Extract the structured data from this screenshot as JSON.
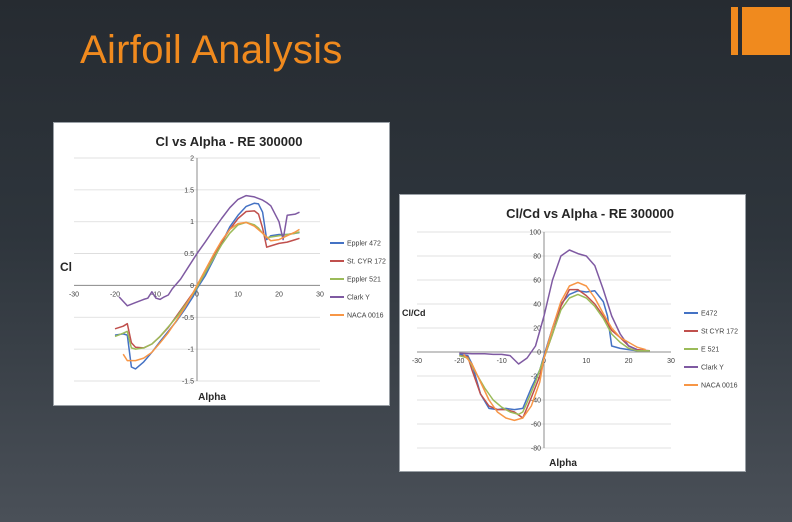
{
  "slide": {
    "title": "Airfoil Analysis",
    "accent_color": "#f08a1e",
    "background_color": "#2b3137"
  },
  "chart_data": [
    {
      "type": "line",
      "title": "Cl vs Alpha - RE 300000",
      "xlabel": "Alpha",
      "ylabel": "Cl",
      "xlim": [
        -30,
        30
      ],
      "ylim": [
        -1.5,
        2
      ],
      "xticks": [
        -30,
        -20,
        -10,
        0,
        10,
        20,
        30
      ],
      "yticks": [
        -1.5,
        -1,
        -0.5,
        0,
        0.5,
        1,
        1.5,
        2
      ],
      "xtick_labels": [
        "-30",
        "-20",
        "-10",
        "0",
        "10",
        "20",
        "30"
      ],
      "ytick_labels": [
        "-1.5",
        "-1",
        "-0.5",
        "0",
        "0.5",
        "1",
        "1.5",
        "2"
      ],
      "grid": true,
      "legend": "right",
      "series": [
        {
          "name": "Eppler 472",
          "color": "#4472c4",
          "x": [
            -20,
            -18,
            -17,
            -16,
            -15,
            -13,
            -11,
            -9,
            -7,
            -5,
            -3,
            -1,
            0,
            2,
            4,
            6,
            8,
            10,
            12,
            14,
            15,
            16,
            17,
            18,
            20,
            22,
            24,
            25
          ],
          "y": [
            -0.78,
            -0.76,
            -0.78,
            -1.28,
            -1.31,
            -1.2,
            -1.05,
            -0.88,
            -0.72,
            -0.56,
            -0.38,
            -0.18,
            -0.05,
            0.15,
            0.4,
            0.66,
            0.92,
            1.1,
            1.24,
            1.29,
            1.28,
            1.15,
            0.72,
            0.78,
            0.8,
            0.8,
            0.82,
            0.83
          ]
        },
        {
          "name": "St. CYR 172",
          "color": "#c0504d",
          "x": [
            -20,
            -18,
            -17,
            -16,
            -15,
            -13,
            -11,
            -9,
            -7,
            -5,
            -3,
            -1,
            0,
            2,
            4,
            6,
            8,
            10,
            12,
            14,
            15,
            16,
            17,
            18,
            20,
            22,
            24,
            25
          ],
          "y": [
            -0.68,
            -0.64,
            -0.6,
            -0.9,
            -0.97,
            -0.98,
            -0.92,
            -0.8,
            -0.66,
            -0.48,
            -0.3,
            -0.12,
            -0.02,
            0.2,
            0.44,
            0.68,
            0.88,
            1.05,
            1.16,
            1.17,
            1.12,
            0.9,
            0.6,
            0.62,
            0.66,
            0.68,
            0.72,
            0.74
          ]
        },
        {
          "name": "Eppler 521",
          "color": "#9bbb59",
          "x": [
            -20,
            -18,
            -17,
            -16,
            -15,
            -13,
            -11,
            -9,
            -7,
            -5,
            -3,
            -1,
            0,
            2,
            4,
            6,
            8,
            10,
            12,
            14,
            15,
            16,
            17,
            18,
            20,
            22,
            24,
            25
          ],
          "y": [
            -0.8,
            -0.75,
            -0.72,
            -0.98,
            -1.0,
            -0.98,
            -0.92,
            -0.8,
            -0.65,
            -0.5,
            -0.32,
            -0.14,
            -0.03,
            0.2,
            0.42,
            0.64,
            0.82,
            0.95,
            0.99,
            0.95,
            0.9,
            0.82,
            0.75,
            0.76,
            0.78,
            0.8,
            0.82,
            0.84
          ]
        },
        {
          "name": "Clark Y",
          "color": "#7f5aa2",
          "x": [
            -19,
            -17,
            -15,
            -13,
            -12,
            -11,
            -10,
            -9,
            -8,
            -7,
            -6,
            -4,
            -2,
            0,
            2,
            4,
            6,
            8,
            10,
            12,
            14,
            16,
            17,
            18,
            20,
            21,
            22,
            24,
            25
          ],
          "y": [
            -0.18,
            -0.32,
            -0.27,
            -0.22,
            -0.2,
            -0.1,
            -0.2,
            -0.22,
            -0.18,
            -0.15,
            -0.05,
            0.1,
            0.3,
            0.5,
            0.68,
            0.87,
            1.05,
            1.22,
            1.35,
            1.41,
            1.39,
            1.34,
            1.3,
            1.25,
            1.0,
            0.72,
            1.1,
            1.12,
            1.15
          ]
        },
        {
          "name": "NACA 0016",
          "color": "#f79646",
          "x": [
            -18,
            -17,
            -15,
            -13,
            -11,
            -9,
            -7,
            -5,
            -3,
            -1,
            0,
            2,
            4,
            6,
            8,
            10,
            12,
            14,
            16,
            18,
            20,
            22,
            24,
            25
          ],
          "y": [
            -1.08,
            -1.18,
            -1.18,
            -1.14,
            -1.05,
            -0.9,
            -0.74,
            -0.55,
            -0.35,
            -0.12,
            0.0,
            0.24,
            0.48,
            0.7,
            0.88,
            0.97,
            0.99,
            0.93,
            0.82,
            0.7,
            0.72,
            0.78,
            0.84,
            0.88
          ]
        }
      ]
    },
    {
      "type": "line",
      "title": "Cl/Cd vs Alpha - RE 300000",
      "xlabel": "Alpha",
      "ylabel": "Cl/Cd",
      "xlim": [
        -30,
        30
      ],
      "ylim": [
        -80,
        100
      ],
      "xticks": [
        -30,
        -20,
        -10,
        0,
        10,
        20,
        30
      ],
      "yticks": [
        -80,
        -60,
        -40,
        -20,
        0,
        20,
        40,
        60,
        80,
        100
      ],
      "xtick_labels": [
        "-30",
        "-20",
        "-10",
        "0",
        "10",
        "20",
        "30"
      ],
      "ytick_labels": [
        "-80",
        "-60",
        "-40",
        "-20",
        "0",
        "20",
        "40",
        "60",
        "80",
        "100"
      ],
      "grid": true,
      "legend": "right",
      "series": [
        {
          "name": "E472",
          "color": "#4472c4",
          "x": [
            -20,
            -18,
            -17,
            -15,
            -13,
            -11,
            -9,
            -7,
            -5,
            -3,
            -1,
            0,
            2,
            4,
            6,
            8,
            10,
            12,
            14,
            15,
            16,
            18,
            20,
            22,
            25
          ],
          "y": [
            -2,
            -3,
            -10,
            -35,
            -47,
            -48,
            -47,
            -48,
            -47,
            -30,
            -15,
            -3,
            20,
            40,
            48,
            51,
            50,
            51,
            42,
            30,
            5,
            3,
            2,
            1,
            1
          ]
        },
        {
          "name": "St CYR 172",
          "color": "#c0504d",
          "x": [
            -20,
            -18,
            -17,
            -15,
            -13,
            -11,
            -9,
            -7,
            -5,
            -3,
            -1,
            0,
            2,
            4,
            6,
            8,
            10,
            12,
            14,
            16,
            18,
            20,
            22,
            25
          ],
          "y": [
            -3,
            -4,
            -15,
            -35,
            -45,
            -48,
            -48,
            -50,
            -55,
            -38,
            -20,
            -5,
            15,
            38,
            52,
            52,
            47,
            40,
            30,
            18,
            12,
            5,
            2,
            1
          ]
        },
        {
          "name": "E 521",
          "color": "#9bbb59",
          "x": [
            -20,
            -18,
            -16,
            -14,
            -12,
            -10,
            -8,
            -6,
            -5,
            -4,
            -2,
            0,
            2,
            4,
            6,
            8,
            10,
            12,
            14,
            16,
            18,
            20,
            22,
            25
          ],
          "y": [
            -3,
            -5,
            -18,
            -30,
            -40,
            -46,
            -50,
            -52,
            -50,
            -42,
            -25,
            -5,
            15,
            35,
            45,
            48,
            45,
            38,
            28,
            15,
            8,
            3,
            1,
            1
          ]
        },
        {
          "name": "Clark Y",
          "color": "#7f5aa2",
          "x": [
            -20,
            -17,
            -14,
            -12,
            -10,
            -8,
            -6,
            -4,
            -2,
            0,
            2,
            4,
            6,
            8,
            10,
            12,
            14,
            16,
            18,
            20,
            22
          ],
          "y": [
            -1,
            -1.5,
            -1.5,
            -2,
            -2,
            -3,
            -10,
            -5,
            5,
            30,
            60,
            80,
            85,
            82,
            80,
            72,
            52,
            30,
            15,
            5,
            2
          ]
        },
        {
          "name": "NACA 0016",
          "color": "#f79646",
          "x": [
            -19,
            -17,
            -15,
            -13,
            -11,
            -9,
            -7,
            -5,
            -3,
            -1,
            0,
            2,
            4,
            6,
            8,
            10,
            12,
            14,
            16,
            18,
            20,
            22,
            24
          ],
          "y": [
            -2,
            -10,
            -25,
            -40,
            -50,
            -55,
            -57,
            -55,
            -45,
            -25,
            -5,
            20,
            42,
            55,
            58,
            55,
            45,
            32,
            20,
            12,
            8,
            4,
            2
          ]
        }
      ]
    }
  ]
}
